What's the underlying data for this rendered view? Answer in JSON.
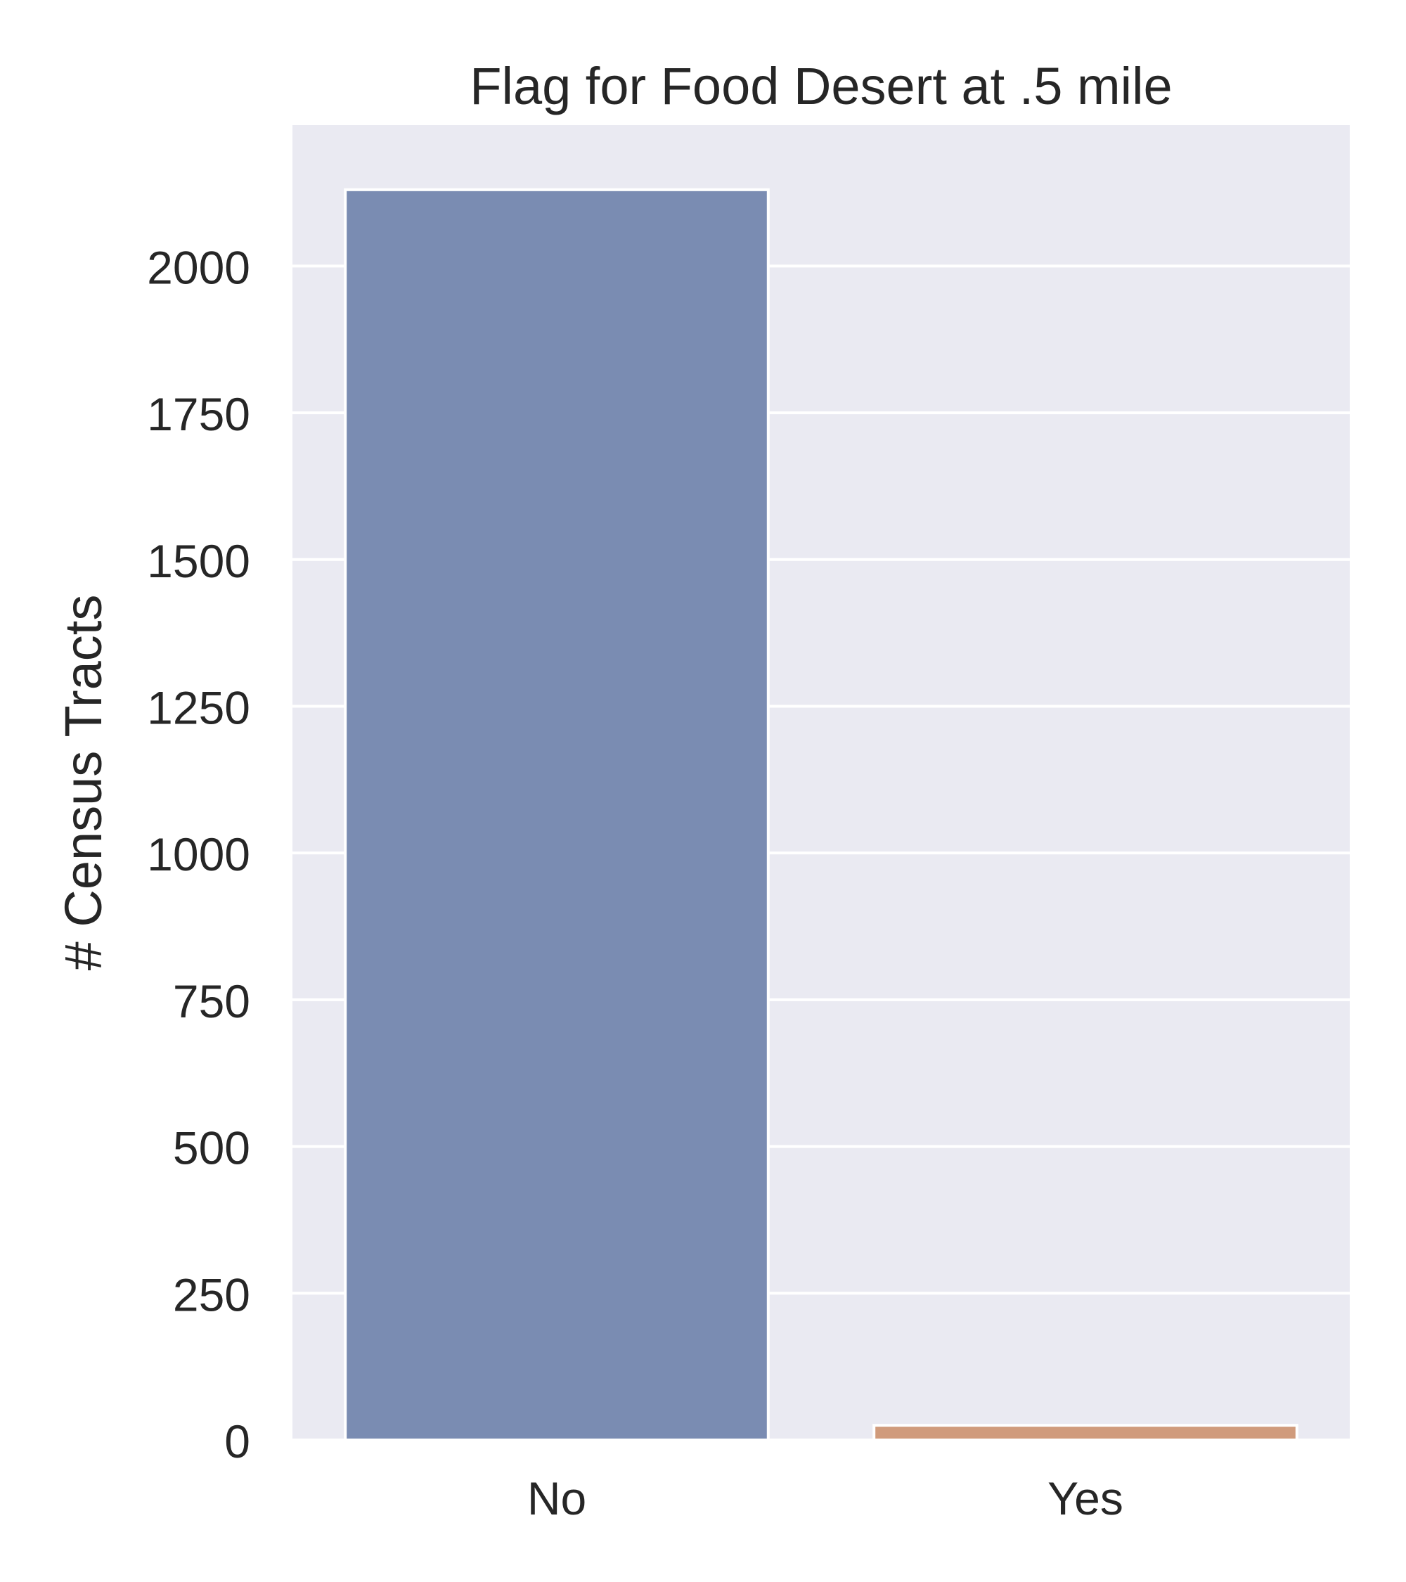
{
  "chart_data": {
    "type": "bar",
    "title": "Flag for Food Desert at .5 mile",
    "xlabel": "",
    "ylabel": "# Census Tracts",
    "categories": [
      "No",
      "Yes"
    ],
    "values": [
      2130,
      25
    ],
    "ylim": [
      0,
      2240
    ],
    "yticks": [
      0,
      250,
      500,
      750,
      1000,
      1250,
      1500,
      1750,
      2000
    ],
    "grid": true,
    "legend": "none",
    "colors": [
      "#7a8cb2",
      "#d09b7c"
    ],
    "background": "#eaeaf2"
  }
}
